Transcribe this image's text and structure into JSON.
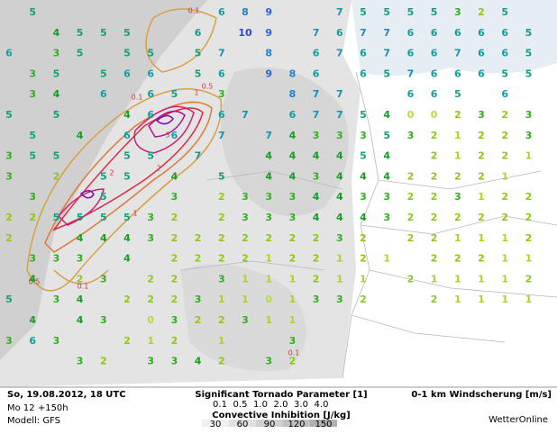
{
  "wind": {
    "colors": {
      "0": "#b4dc3c",
      "1": "#a8d428",
      "2": "#8cc814",
      "3": "#2eb01c",
      "4": "#12a020",
      "5": "#10a07c",
      "6": "#0ea0a0",
      "7": "#1490b4",
      "8": "#2080d0",
      "9": "#2464e0",
      "10": "#2846e0"
    },
    "rows": [
      [
        null,
        5,
        null,
        null,
        null,
        null,
        null,
        null,
        null,
        6,
        8,
        9,
        null,
        null,
        7,
        5,
        5,
        5,
        5,
        3,
        2,
        5,
        null
      ],
      [
        null,
        null,
        4,
        5,
        5,
        5,
        null,
        null,
        6,
        null,
        10,
        9,
        null,
        7,
        6,
        7,
        7,
        6,
        6,
        6,
        6,
        6,
        5
      ],
      [
        6,
        null,
        3,
        5,
        null,
        5,
        5,
        null,
        5,
        7,
        null,
        8,
        null,
        6,
        7,
        6,
        7,
        6,
        6,
        7,
        6,
        6,
        5
      ],
      [
        null,
        3,
        5,
        null,
        5,
        6,
        6,
        null,
        5,
        6,
        null,
        9,
        8,
        6,
        null,
        6,
        5,
        7,
        6,
        6,
        6,
        5,
        5
      ],
      [
        null,
        3,
        4,
        null,
        6,
        null,
        6,
        5,
        null,
        3,
        null,
        null,
        8,
        7,
        7,
        null,
        null,
        6,
        6,
        5,
        null,
        6,
        null
      ],
      [
        5,
        null,
        5,
        null,
        null,
        4,
        6,
        null,
        null,
        6,
        7,
        null,
        6,
        7,
        7,
        5,
        4,
        0,
        0,
        2,
        3,
        2,
        3
      ],
      [
        null,
        5,
        null,
        4,
        null,
        6,
        null,
        6,
        null,
        7,
        null,
        7,
        4,
        3,
        3,
        3,
        5,
        3,
        2,
        1,
        2,
        2,
        3
      ],
      [
        3,
        5,
        5,
        null,
        null,
        5,
        5,
        null,
        7,
        null,
        null,
        4,
        4,
        4,
        4,
        5,
        4,
        null,
        2,
        1,
        2,
        2,
        1
      ],
      [
        3,
        null,
        2,
        null,
        5,
        5,
        null,
        4,
        null,
        5,
        null,
        4,
        4,
        3,
        4,
        4,
        4,
        2,
        2,
        2,
        2,
        1,
        null
      ],
      [
        null,
        3,
        null,
        null,
        5,
        null,
        null,
        3,
        null,
        2,
        3,
        3,
        3,
        4,
        4,
        3,
        3,
        2,
        2,
        3,
        1,
        2,
        2
      ],
      [
        2,
        2,
        5,
        5,
        5,
        5,
        3,
        2,
        null,
        2,
        3,
        3,
        3,
        4,
        4,
        4,
        3,
        2,
        2,
        2,
        2,
        2,
        2
      ],
      [
        2,
        null,
        null,
        4,
        4,
        4,
        3,
        2,
        2,
        2,
        2,
        2,
        2,
        2,
        3,
        2,
        null,
        2,
        2,
        1,
        1,
        1,
        2
      ],
      [
        null,
        3,
        3,
        3,
        null,
        4,
        null,
        2,
        2,
        2,
        2,
        1,
        2,
        2,
        1,
        2,
        1,
        null,
        2,
        2,
        2,
        1,
        1
      ],
      [
        null,
        4,
        null,
        2,
        3,
        null,
        2,
        2,
        null,
        3,
        1,
        1,
        1,
        2,
        1,
        1,
        null,
        2,
        1,
        1,
        1,
        1,
        2
      ],
      [
        5,
        null,
        3,
        4,
        null,
        2,
        2,
        2,
        3,
        1,
        1,
        0,
        1,
        3,
        3,
        2,
        null,
        null,
        2,
        1,
        1,
        1,
        1
      ],
      [
        null,
        4,
        null,
        4,
        3,
        null,
        0,
        3,
        2,
        2,
        3,
        1,
        1,
        null,
        null,
        null,
        null,
        null,
        null,
        null,
        null,
        null,
        null
      ],
      [
        3,
        6,
        3,
        null,
        null,
        2,
        1,
        2,
        null,
        1,
        null,
        null,
        3,
        null,
        null,
        null,
        null,
        null,
        null,
        null,
        null,
        null,
        null
      ],
      [
        null,
        null,
        null,
        3,
        2,
        null,
        3,
        3,
        4,
        2,
        null,
        3,
        2,
        null,
        null,
        null,
        null,
        null,
        null,
        null,
        null,
        null,
        null
      ]
    ]
  },
  "contour_labels": [
    "1",
    "0.5",
    "2",
    "3",
    "1",
    "0.5",
    "0.1",
    "0.1",
    "0.1",
    "2",
    "0.1"
  ],
  "footer": {
    "date": "So, 19.08.2012, 18 UTC",
    "run": "Mo 12 +150h",
    "model": "Modell: GFS",
    "stp_title": "Significant Tornado Parameter [1]",
    "stp_levels": [
      {
        "label": "0.1",
        "color": "#d8a040"
      },
      {
        "label": "0.5",
        "color": "#e07838"
      },
      {
        "label": "1.0",
        "color": "#e02840"
      },
      {
        "label": "2.0",
        "color": "#d02070"
      },
      {
        "label": "3.0",
        "color": "#b01090"
      },
      {
        "label": "4.0",
        "color": "#8010a8"
      }
    ],
    "cin_title": "Convective Inhibition [J/kg]",
    "cin_levels": [
      {
        "label": "30",
        "color": "#f0f0f0"
      },
      {
        "label": "60",
        "color": "#e0e0e0"
      },
      {
        "label": "90",
        "color": "#d0d0d0"
      },
      {
        "label": "120",
        "color": "#c0c0c0"
      },
      {
        "label": "150",
        "color": "#b0b0b0"
      }
    ],
    "wind_title": "0-1 km Windscherung [m/s]",
    "brand": "WetterOnline"
  }
}
